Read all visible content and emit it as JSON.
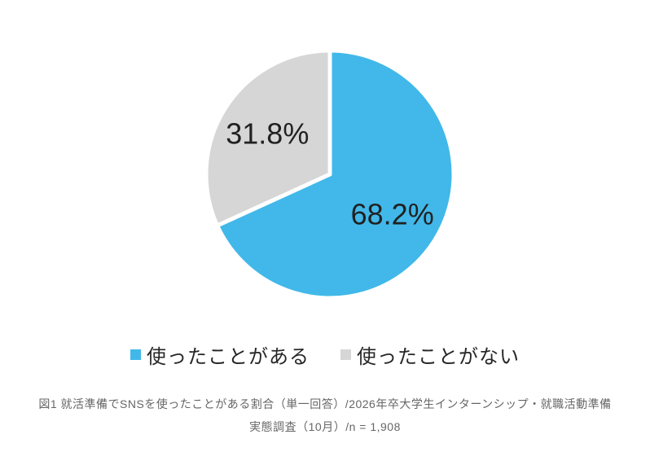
{
  "chart_data": {
    "type": "pie",
    "unit": "%",
    "slices": [
      {
        "label": "使ったことがある",
        "value": 68.2,
        "display_label": "68.2%",
        "color": "#41b8e9"
      },
      {
        "label": "使ったことがない",
        "value": 31.8,
        "display_label": "31.8%",
        "color": "#d6d6d6"
      }
    ],
    "start_angle_deg": 0,
    "direction": "clockwise",
    "slice_label_color": "#212121",
    "separator_color": "#ffffff",
    "legend_position": "bottom"
  },
  "legend": {
    "items": [
      {
        "label": "使ったことがある",
        "color": "#41b8e9"
      },
      {
        "label": "使ったことがない",
        "color": "#d6d6d6"
      }
    ]
  },
  "caption": {
    "line1": "図1 就活準備でSNSを使ったことがある割合（単一回答）/2026年卒大学生インターンシップ・就職活動準備",
    "line2": "実態調査（10月）/n = 1,908"
  }
}
